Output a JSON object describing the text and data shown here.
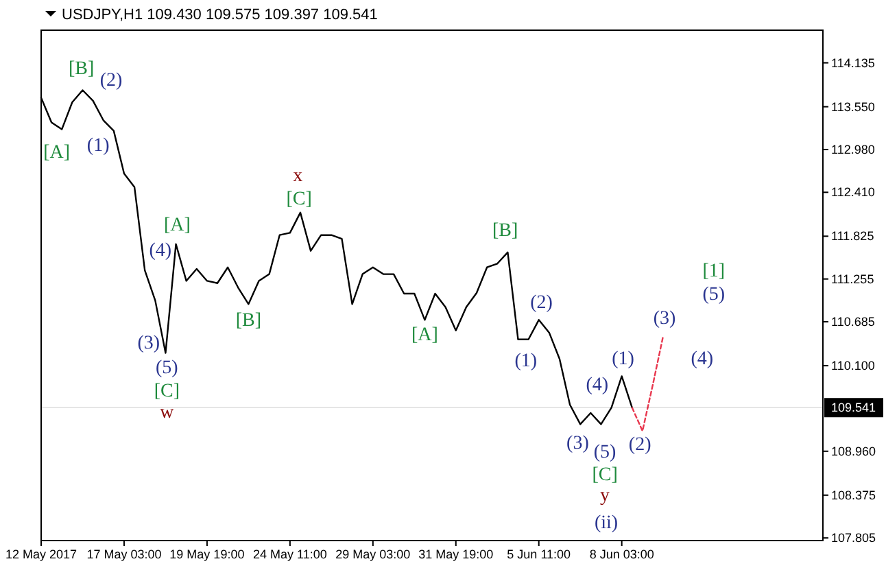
{
  "chart_data": {
    "type": "line",
    "title": "USDJPY,H1  109.430 109.575 109.397 109.541",
    "categories": [
      "12 May 2017",
      null,
      null,
      null,
      null,
      null,
      null,
      null,
      "17 May 03:00",
      null,
      null,
      null,
      null,
      null,
      null,
      null,
      "19 May 19:00",
      null,
      null,
      null,
      null,
      null,
      null,
      null,
      "24 May 11:00",
      null,
      null,
      null,
      null,
      null,
      null,
      null,
      "29 May 03:00",
      null,
      null,
      null,
      null,
      null,
      null,
      null,
      "31 May 19:00",
      null,
      null,
      null,
      null,
      null,
      null,
      null,
      "5 Jun 11:00",
      null,
      null,
      null,
      null,
      null,
      null,
      null,
      "8 Jun 03:00",
      null,
      null,
      null,
      null,
      null,
      null,
      null,
      null,
      null,
      null,
      null,
      null,
      null,
      null,
      null,
      null,
      null,
      null,
      null
    ],
    "ylim": [
      107.77,
      114.57
    ],
    "yticks": [
      {
        "value": 107.805,
        "label": "107.805"
      },
      {
        "value": 108.375,
        "label": "108.375"
      },
      {
        "value": 108.96,
        "label": "108.960"
      },
      {
        "value": 110.1,
        "label": "110.100"
      },
      {
        "value": 110.685,
        "label": "110.685"
      },
      {
        "value": 111.255,
        "label": "111.255"
      },
      {
        "value": 111.825,
        "label": "111.825"
      },
      {
        "value": 112.41,
        "label": "112.410"
      },
      {
        "value": 112.98,
        "label": "112.980"
      },
      {
        "value": 113.55,
        "label": "113.550"
      },
      {
        "value": 114.135,
        "label": "114.135"
      }
    ],
    "grid": false,
    "ref_lines": [
      {
        "axis": "y",
        "value": 109.541,
        "label": "109.541",
        "color": "#000000"
      }
    ],
    "series": [
      {
        "color": "#000000",
        "line_style": "solid",
        "values": [
          113.67,
          113.34,
          113.25,
          113.61,
          113.77,
          113.63,
          113.37,
          113.23,
          112.66,
          112.48,
          111.37,
          110.97,
          110.27,
          111.72,
          111.23,
          111.39,
          111.23,
          111.2,
          111.41,
          111.14,
          110.92,
          111.23,
          111.32,
          111.84,
          111.87,
          112.14,
          111.63,
          111.84,
          111.84,
          111.79,
          110.92,
          111.32,
          111.41,
          111.32,
          111.32,
          111.06,
          111.06,
          110.71,
          111.06,
          110.88,
          110.57,
          110.88,
          111.07,
          111.41,
          111.46,
          111.61,
          110.45,
          110.45,
          110.71,
          110.54,
          110.19,
          109.58,
          109.32,
          109.47,
          109.32,
          109.54,
          109.96,
          109.54,
          null,
          null,
          null,
          null,
          null,
          null,
          null,
          null,
          null,
          null,
          null,
          null,
          null,
          null,
          null,
          null,
          null,
          null
        ]
      },
      {
        "color": "#e8384f",
        "line_style": "dashed",
        "values": [
          null,
          null,
          null,
          null,
          null,
          null,
          null,
          null,
          null,
          null,
          null,
          null,
          null,
          null,
          null,
          null,
          null,
          null,
          null,
          null,
          null,
          null,
          null,
          null,
          null,
          null,
          null,
          null,
          null,
          null,
          null,
          null,
          null,
          null,
          null,
          null,
          null,
          null,
          null,
          null,
          null,
          null,
          null,
          null,
          null,
          null,
          null,
          null,
          null,
          null,
          null,
          null,
          null,
          null,
          null,
          null,
          null,
          109.54,
          109.23,
          109.85,
          110.5,
          null,
          null,
          null,
          null,
          null,
          null,
          null,
          null,
          null,
          null,
          null,
          null,
          null,
          null,
          null
        ]
      }
    ],
    "annotations": [
      "[B]",
      "(2)",
      "[A]",
      "(1)",
      "x",
      "[C]",
      "[A]",
      "(4)",
      "[B]",
      "(3)",
      "(5)",
      "[C]",
      "w",
      "[A]",
      "[B]",
      "(2)",
      "(1)",
      "(3)",
      "(4)",
      "(1)",
      "(5)",
      "(2)",
      "[C]",
      "y",
      "(ii)",
      "(3)",
      "[1]",
      "(5)",
      "(4)"
    ]
  }
}
